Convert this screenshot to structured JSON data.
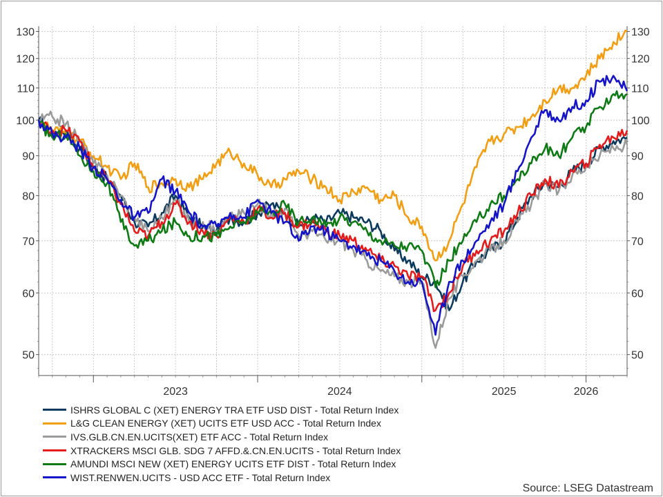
{
  "chart_data": {
    "type": "line",
    "y_scale": "log",
    "ylim": [
      47,
      132
    ],
    "y_ticks": [
      50,
      60,
      70,
      80,
      90,
      100,
      110,
      120,
      130
    ],
    "y_ticks_right": [
      50,
      60,
      70,
      80,
      90,
      100,
      110,
      120,
      130
    ],
    "x_range": [
      "2022-09",
      "2026-04"
    ],
    "x_tick_labels": [
      {
        "label": "2023",
        "date": "2023-07"
      },
      {
        "label": "2024",
        "date": "2024-07"
      },
      {
        "label": "2025",
        "date": "2025-07"
      },
      {
        "label": "2026",
        "date": "2026-01"
      }
    ],
    "x_major_ticks": [
      "2023-01",
      "2024-01",
      "2025-01",
      "2026-01"
    ],
    "grid": true,
    "legend_position": "bottom-left",
    "x": [
      "2022-09",
      "2022-10",
      "2022-11",
      "2022-12",
      "2023-01",
      "2023-02",
      "2023-03",
      "2023-04",
      "2023-05",
      "2023-06",
      "2023-07",
      "2023-08",
      "2023-09",
      "2023-10",
      "2023-11",
      "2023-12",
      "2024-01",
      "2024-02",
      "2024-03",
      "2024-04",
      "2024-05",
      "2024-06",
      "2024-07",
      "2024-08",
      "2024-09",
      "2024-10",
      "2024-11",
      "2024-12",
      "2025-01",
      "2025-02",
      "2025-03",
      "2025-04",
      "2025-05",
      "2025-06",
      "2025-07",
      "2025-08",
      "2025-09",
      "2025-10",
      "2025-11",
      "2025-12",
      "2026-01",
      "2026-02",
      "2026-03",
      "2026-04"
    ],
    "series": [
      {
        "name": "ISHRS GLOBAL C (XET) ENERGY TRA ETF USD DIST - Total Return Index",
        "color": "#0b3a5e",
        "values": [
          100,
          96,
          97,
          92,
          87,
          84,
          80,
          74,
          73,
          76,
          80,
          75,
          73,
          72,
          75,
          74,
          76,
          78,
          76,
          73,
          75,
          74,
          76,
          75,
          74,
          72,
          68,
          66,
          63,
          62,
          57,
          62,
          66,
          68,
          70,
          75,
          80,
          83,
          82,
          86,
          88,
          92,
          94,
          95
        ]
      },
      {
        "name": "L&G CLEAN ENERGY (XET) UCITS ETF USD ACC - Total Return Index",
        "color": "#f29e12",
        "values": [
          100,
          97,
          96,
          94,
          90,
          87,
          84,
          88,
          82,
          83,
          84,
          82,
          84,
          88,
          91,
          88,
          85,
          82,
          84,
          86,
          84,
          82,
          79,
          81,
          82,
          79,
          80,
          75,
          73,
          66,
          70,
          78,
          87,
          94,
          96,
          98,
          101,
          106,
          110,
          110,
          114,
          120,
          126,
          130
        ]
      },
      {
        "name": "IVS.GLB.CN.EN.UCITS(XET) ETF ACC - Total Return Index",
        "color": "#9a9a9a",
        "values": [
          100,
          101,
          99,
          94,
          88,
          85,
          80,
          75,
          72,
          75,
          79,
          74,
          74,
          72,
          75,
          76,
          78,
          76,
          77,
          71,
          72,
          70,
          70,
          68,
          66,
          64,
          63,
          62,
          62,
          51,
          59,
          63,
          66,
          68,
          70,
          74,
          78,
          83,
          81,
          85,
          87,
          90,
          92,
          93
        ]
      },
      {
        "name": "XTRACKERS MSCI GLB. SDG 7 AFFD.&.CN.EN.UCITS - Total Return Index",
        "color": "#e31b1b",
        "values": [
          99,
          97,
          97,
          94,
          87,
          84,
          78,
          72,
          71,
          74,
          78,
          74,
          72,
          71,
          75,
          74,
          77,
          75,
          76,
          73,
          74,
          72,
          71,
          70,
          68,
          66,
          65,
          63,
          63,
          57,
          60,
          65,
          68,
          70,
          72,
          76,
          80,
          84,
          82,
          86,
          88,
          93,
          95,
          97
        ]
      },
      {
        "name": "AMUNDI MSCI NEW (XET) ENERGY UCITS ETF DIST - Total Return Index",
        "color": "#0d7a13",
        "values": [
          99,
          95,
          96,
          90,
          86,
          83,
          74,
          69,
          70,
          72,
          74,
          71,
          71,
          71,
          73,
          74,
          76,
          76,
          78,
          74,
          75,
          73,
          75,
          74,
          72,
          70,
          69,
          69,
          68,
          61,
          66,
          70,
          74,
          78,
          80,
          84,
          88,
          92,
          90,
          95,
          98,
          104,
          108,
          108
        ]
      },
      {
        "name": "WIST.RENWEN.UCITS - USD ACC ETF - Total Return Index",
        "color": "#1414c8",
        "values": [
          100,
          96,
          95,
          92,
          87,
          84,
          79,
          75,
          76,
          84,
          81,
          76,
          73,
          73,
          76,
          75,
          79,
          76,
          74,
          70,
          73,
          72,
          70,
          69,
          67,
          66,
          64,
          62,
          62,
          53,
          62,
          66,
          70,
          74,
          78,
          86,
          95,
          103,
          100,
          104,
          106,
          112,
          114,
          109
        ]
      }
    ],
    "source": "Source: LSEG Datastream"
  }
}
